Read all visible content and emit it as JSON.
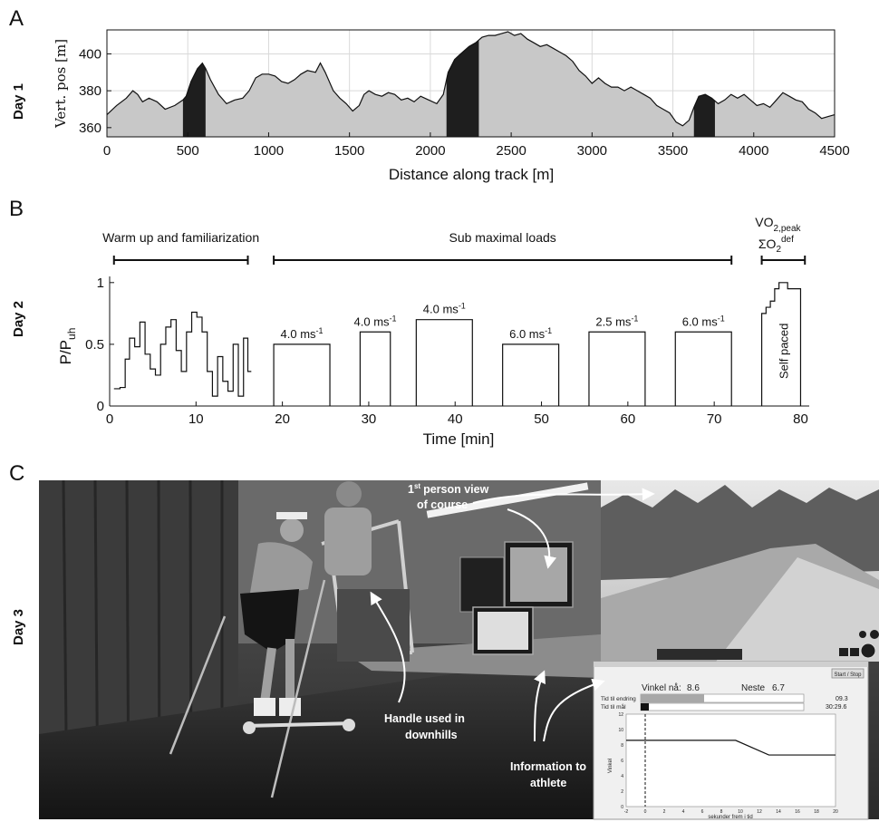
{
  "panels": {
    "a": "A",
    "b": "B",
    "c": "C",
    "day1": "Day 1",
    "day2": "Day 2",
    "day3": "Day 3"
  },
  "chart_data": [
    {
      "type": "area",
      "xlabel": "Distance along track [m]",
      "ylabel": "Vert. pos [m]",
      "xlim": [
        0,
        4500
      ],
      "ylim": [
        355,
        413
      ],
      "xticks": [
        0,
        500,
        1000,
        1500,
        2000,
        2500,
        3000,
        3500,
        4000,
        4500
      ],
      "yticks": [
        360,
        380,
        400
      ],
      "grid": true,
      "x": [
        0,
        60,
        120,
        160,
        190,
        220,
        260,
        310,
        360,
        420,
        470,
        490,
        520,
        560,
        590,
        610,
        640,
        690,
        740,
        790,
        840,
        880,
        920,
        960,
        1000,
        1040,
        1080,
        1120,
        1160,
        1200,
        1240,
        1290,
        1320,
        1350,
        1400,
        1440,
        1480,
        1520,
        1560,
        1590,
        1620,
        1660,
        1700,
        1740,
        1780,
        1820,
        1860,
        1900,
        1940,
        1990,
        2040,
        2080,
        2110,
        2150,
        2200,
        2240,
        2280,
        2320,
        2360,
        2400,
        2440,
        2480,
        2520,
        2560,
        2600,
        2640,
        2680,
        2720,
        2760,
        2800,
        2840,
        2880,
        2920,
        2960,
        3000,
        3040,
        3080,
        3120,
        3160,
        3200,
        3240,
        3280,
        3320,
        3360,
        3400,
        3440,
        3480,
        3520,
        3560,
        3600,
        3630,
        3660,
        3700,
        3740,
        3780,
        3820,
        3860,
        3900,
        3940,
        3980,
        4020,
        4060,
        4100,
        4140,
        4180,
        4220,
        4260,
        4300,
        4340,
        4380,
        4420,
        4460,
        4500
      ],
      "y": [
        367,
        372,
        376,
        380,
        378,
        374,
        376,
        374,
        370,
        372,
        375,
        377,
        385,
        392,
        395,
        392,
        386,
        378,
        373,
        375,
        376,
        380,
        387,
        389,
        389,
        388,
        385,
        384,
        386,
        389,
        391,
        390,
        395,
        390,
        380,
        376,
        373,
        369,
        372,
        378,
        380,
        378,
        377,
        379,
        378,
        375,
        376,
        374,
        377,
        375,
        373,
        378,
        390,
        397,
        401,
        404,
        406,
        409,
        410,
        410,
        411,
        412,
        410,
        411,
        408,
        406,
        404,
        405,
        403,
        401,
        399,
        396,
        391,
        388,
        384,
        387,
        384,
        382,
        382,
        380,
        382,
        380,
        378,
        376,
        372,
        370,
        368,
        363,
        361,
        364,
        371,
        377,
        378,
        376,
        373,
        375,
        378,
        376,
        378,
        375,
        372,
        373,
        371,
        375,
        379,
        377,
        375,
        374,
        370,
        368,
        365,
        366,
        367
      ],
      "highlighted_segments": [
        [
          470,
          610
        ],
        [
          2100,
          2300
        ],
        [
          3630,
          3760
        ]
      ]
    },
    {
      "type": "line",
      "xlabel": "Time [min]",
      "ylabel": "P/P",
      "ylabel_sub": "uh",
      "xlim": [
        0,
        81
      ],
      "ylim": [
        0,
        1.05
      ],
      "xticks": [
        0,
        10,
        20,
        30,
        40,
        50,
        60,
        70,
        80
      ],
      "yticks": [
        0,
        0.5,
        1
      ],
      "grid": false,
      "warmup": {
        "t": [
          0.5,
          1.2,
          1.8,
          2.3,
          2.9,
          3.5,
          4.1,
          4.7,
          5.3,
          5.9,
          6.5,
          7.1,
          7.7,
          8.3,
          8.9,
          9.5,
          10.1,
          10.7,
          11.3,
          11.9,
          12.5,
          13.1,
          13.7,
          14.3,
          14.9,
          15.5,
          16.0
        ],
        "p": [
          0.14,
          0.15,
          0.38,
          0.55,
          0.48,
          0.68,
          0.42,
          0.3,
          0.25,
          0.5,
          0.64,
          0.7,
          0.45,
          0.28,
          0.6,
          0.76,
          0.72,
          0.6,
          0.28,
          0.08,
          0.4,
          0.2,
          0.12,
          0.5,
          0.08,
          0.55,
          0.28
        ]
      },
      "blocks": [
        {
          "t0": 19,
          "t1": 25.5,
          "p": 0.5,
          "label": "4.0 ms",
          "exp": "-1"
        },
        {
          "t0": 29,
          "t1": 32.5,
          "p": 0.6,
          "label": "4.0 ms",
          "exp": "-1"
        },
        {
          "t0": 35.5,
          "t1": 42,
          "p": 0.7,
          "label": "4.0 ms",
          "exp": "-1"
        },
        {
          "t0": 45.5,
          "t1": 52,
          "p": 0.5,
          "label": "6.0 ms",
          "exp": "-1"
        },
        {
          "t0": 55.5,
          "t1": 62,
          "p": 0.6,
          "label": "2.5 ms",
          "exp": "-1"
        },
        {
          "t0": 65.5,
          "t1": 72,
          "p": 0.6,
          "label": "6.0 ms",
          "exp": "-1"
        }
      ],
      "self_paced": {
        "t": [
          75.5,
          76.0,
          76.5,
          77.0,
          77.5,
          78.0,
          78.5,
          79.0,
          80.0
        ],
        "p": [
          0.75,
          0.8,
          0.85,
          0.95,
          1.0,
          1.0,
          0.95,
          0.95,
          0.95
        ],
        "label": "Self paced"
      },
      "groups": [
        {
          "label": "Warm up and familiarization",
          "t0": 0.5,
          "t1": 16.0
        },
        {
          "label": "Sub maximal loads",
          "t0": 19.0,
          "t1": 72.0
        },
        {
          "label_line1": "VO",
          "sub1": "2,peak",
          "label_line2": "ΣO",
          "sub2": "2",
          "sup2": "def",
          "t0": 75.5,
          "t1": 80.5
        }
      ]
    }
  ],
  "photo": {
    "callouts": {
      "first_person_a": "st",
      "first_person_b": "person view",
      "first_person_num": "1",
      "first_person_c": "of course",
      "handle_a": "Handle used in",
      "handle_b": "downhills",
      "info_a": "Information to",
      "info_b": "athlete"
    },
    "ui": {
      "button": "Start / Stop",
      "angle_now_label": "Vinkel nå:",
      "angle_now_value": "8.6",
      "next_label": "Neste",
      "next_value": "6.7",
      "row1_label": "Tid til endring",
      "row1_value": "09.3",
      "row2_label": "Tid til mål",
      "row2_value": "30:29.6",
      "mini_ylabel": "Vinkel",
      "mini_xlabel": "sekunder frem i tid",
      "mini_yticks": [
        "12",
        "10",
        "8",
        "6",
        "4",
        "2",
        "0"
      ],
      "mini_xticks": [
        "-2",
        "0",
        "2",
        "4",
        "6",
        "8",
        "10",
        "12",
        "14",
        "16",
        "18",
        "20"
      ],
      "mini_series": {
        "x": [
          -2,
          9.5,
          13,
          20
        ],
        "y": [
          8.6,
          8.6,
          6.7,
          6.7
        ]
      }
    }
  },
  "colors": {
    "profile_fill": "#c8c8c8",
    "highlight_fill": "#1e1e1e",
    "grid": "#d9d9d9",
    "photo_dark": "#2c2c2c"
  }
}
